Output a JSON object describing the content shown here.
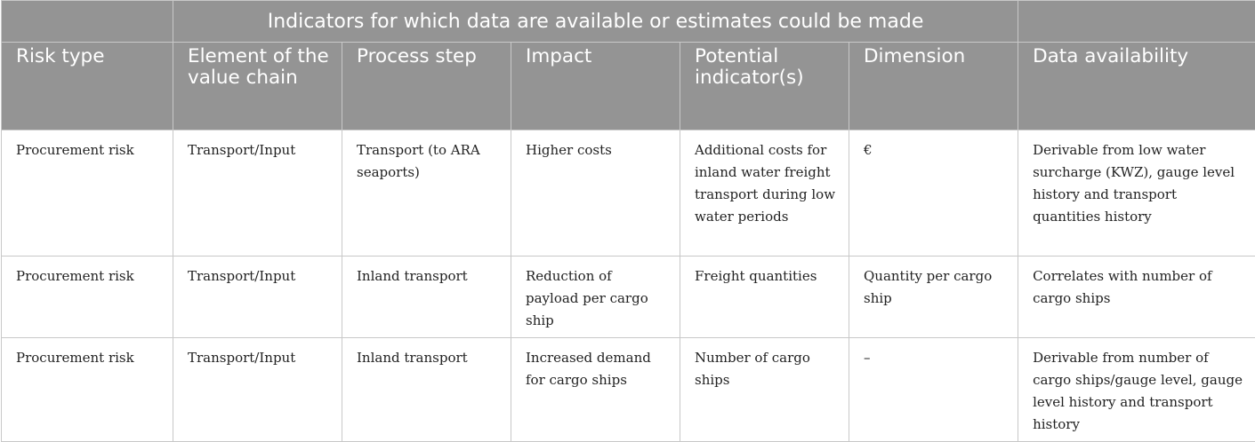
{
  "table": {
    "super_header": "Indicators for which data are available or estimates could be made",
    "columns": [
      "Risk type",
      "Element of the value chain",
      "Process step",
      "Impact",
      "Potential indicator(s)",
      "Dimension",
      "Data availability"
    ],
    "rows": [
      [
        "Procurement risk",
        "Transport/Input",
        "Transport (to ARA seaports)",
        "Higher costs",
        "Additional costs for inland water freight transport during low water periods",
        "€",
        "Derivable from low water surcharge (KWZ), gauge level history and transport quantities history"
      ],
      [
        "Procurement risk",
        "Transport/Input",
        "Inland transport",
        "Reduction of payload per cargo ship",
        "Freight quantities",
        "Quantity per cargo ship",
        "Correlates with number of cargo ships"
      ],
      [
        "Procurement risk",
        "Transport/Input",
        "Inland transport",
        "Increased demand for cargo ships",
        "Number of cargo ships",
        "–",
        "Derivable from number of cargo ships/gauge level, gauge level history and transport history"
      ]
    ]
  }
}
